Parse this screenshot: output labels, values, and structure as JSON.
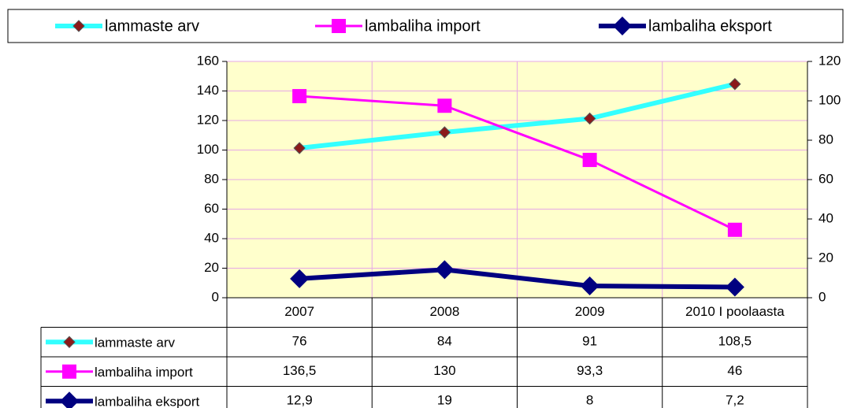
{
  "chart_data": {
    "type": "line",
    "categories": [
      "2007",
      "2008",
      "2009",
      "2010 I poolaasta"
    ],
    "series": [
      {
        "name": "lammaste arv",
        "color": "#33ffff",
        "marker_color": "#8b1a1a",
        "marker": "diamond-small",
        "axis": "y2",
        "values": [
          76,
          84,
          91,
          108.5
        ],
        "value_labels": [
          "76",
          "84",
          "91",
          "108,5"
        ]
      },
      {
        "name": "lambaliha import",
        "color": "#ff00ff",
        "marker_color": "#ff00ff",
        "marker": "square",
        "values": [
          136.5,
          130,
          93.3,
          46
        ],
        "value_labels": [
          "136,5",
          "130",
          "93,3",
          "46"
        ]
      },
      {
        "name": "lambaliha eksport",
        "color": "#000080",
        "marker_color": "#000080",
        "marker": "diamond",
        "values": [
          12.9,
          19,
          8,
          7.2
        ],
        "value_labels": [
          "12,9",
          "19",
          "8",
          "7,2"
        ]
      }
    ],
    "ylim": [
      0,
      160
    ],
    "yticks": [
      0,
      20,
      40,
      60,
      80,
      100,
      120,
      140,
      160
    ],
    "y2lim": [
      0,
      120
    ],
    "y2ticks": [
      0,
      20,
      40,
      60,
      80,
      100,
      120
    ],
    "grid": true,
    "legend": "top",
    "data_table": true
  }
}
